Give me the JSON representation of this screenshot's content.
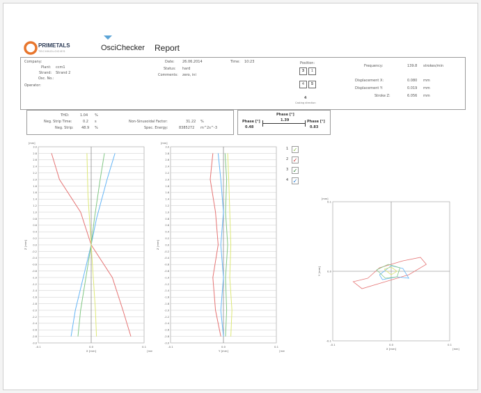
{
  "brand": {
    "name": "PRIMETALS",
    "tagline": "TECHNOLOGIES",
    "product": "OsciChecker",
    "report_title": "Report"
  },
  "info": {
    "company_label": "Company:",
    "plant_label": "Plant:",
    "plant_value": "ccm1",
    "strand_label": "Strand:",
    "strand_value": "Strand 2",
    "osc_no_label": "Osc. No.:",
    "operator_label": "Operator:",
    "date_label": "Date:",
    "date_value": "26.06.2014",
    "time_label": "Time:",
    "time_value": "10:23",
    "status_label": "Status:",
    "status_value": "hard",
    "comments_label": "Comments:",
    "comments_value": "zero, ini",
    "position_label": "Position:",
    "position_cells": [
      "3",
      "1",
      "4",
      "5"
    ],
    "position_marker": "4",
    "casting_direction": "Casting direction"
  },
  "measurements": {
    "frequency_label": "Frequency:",
    "frequency_value": "139.8",
    "frequency_unit": "strokes/min",
    "disp_x_label": "Displacement X:",
    "disp_x_value": "0.080",
    "disp_x_unit": "mm",
    "disp_y_label": "Displacement Y:",
    "disp_y_value": "0.019",
    "disp_y_unit": "mm",
    "stroke_z_label": "Stroke Z:",
    "stroke_z_value": "6.056",
    "stroke_z_unit": "mm"
  },
  "stats": {
    "tho_label": "THD:",
    "tho_value": "1.04",
    "tho_unit": "%",
    "neg_strip_time_label": "Neg. Strip Time:",
    "neg_strip_time_value": "0.2",
    "neg_strip_time_unit": "s",
    "neg_strip_label": "Neg. Strip:",
    "neg_strip_value": "48.9",
    "neg_strip_unit": "%",
    "nonsin_label": "Non-Sinusoidal Factor:",
    "nonsin_value": "31.22",
    "nonsin_unit": "%",
    "spec_energy_label": "Spec. Energy:",
    "spec_energy_value": "8385272",
    "spec_energy_unit": "m^2s^-3"
  },
  "phase": {
    "title": "Phase [°]",
    "left_label": "Phase [°]",
    "left_value": "0.48",
    "mid_value": "1.39",
    "right_label": "Phase [°]",
    "right_value": "0.83"
  },
  "legend": [
    {
      "num": "1",
      "mark": "✓",
      "color": "#8bc34a"
    },
    {
      "num": "2",
      "mark": "✓",
      "color": "#c62828"
    },
    {
      "num": "3",
      "mark": "✓",
      "color": "#2e7d32"
    },
    {
      "num": "4",
      "mark": "✓",
      "color": "#1976d2"
    }
  ],
  "chart_data": [
    {
      "type": "line",
      "ylabel": "Z [mm]",
      "xlabel": "X [mm]",
      "y_top_label": "[mm]",
      "x_unit": "[mm]",
      "xtick_labels": [
        "-0.1",
        "0.0",
        "0.1"
      ],
      "xlim": [
        -0.1,
        0.1
      ],
      "ylim": [
        -3.0,
        3.0
      ],
      "ytick_labels": [
        "3.0",
        "2.8",
        "2.6",
        "2.4",
        "2.2",
        "2.0",
        "1.8",
        "1.6",
        "1.4",
        "1.2",
        "1.0",
        "0.8",
        "0.6",
        "0.4",
        "0.2",
        "0.0",
        "-0.2",
        "-0.4",
        "-0.6",
        "-0.8",
        "-1.0",
        "-1.2",
        "-1.4",
        "-1.6",
        "-1.8",
        "-2.0",
        "-2.2",
        "-2.4",
        "-2.6",
        "-2.8",
        "-3.0"
      ],
      "series": [
        {
          "color": "#e57373",
          "points": [
            [
              -0.075,
              2.8
            ],
            [
              -0.06,
              2.0
            ],
            [
              -0.02,
              1.0
            ],
            [
              0.0,
              0.0
            ],
            [
              0.04,
              -1.0
            ],
            [
              0.06,
              -2.0
            ],
            [
              0.075,
              -2.8
            ]
          ]
        },
        {
          "color": "#64b5f6",
          "points": [
            [
              0.045,
              2.8
            ],
            [
              0.03,
              2.0
            ],
            [
              0.01,
              0.8
            ],
            [
              0.0,
              0.0
            ],
            [
              -0.015,
              -1.0
            ],
            [
              -0.03,
              -2.0
            ],
            [
              -0.038,
              -2.8
            ]
          ]
        },
        {
          "color": "#81c784",
          "points": [
            [
              0.025,
              2.8
            ],
            [
              0.017,
              2.0
            ],
            [
              0.006,
              0.8
            ],
            [
              0.0,
              0.0
            ],
            [
              -0.01,
              -1.0
            ],
            [
              -0.02,
              -2.0
            ],
            [
              -0.025,
              -2.8
            ]
          ]
        },
        {
          "color": "#dce775",
          "points": [
            [
              -0.008,
              2.8
            ],
            [
              -0.006,
              1.5
            ],
            [
              -0.002,
              0.5
            ],
            [
              0.0,
              0.0
            ],
            [
              0.004,
              -1.0
            ],
            [
              0.008,
              -2.0
            ],
            [
              0.01,
              -2.8
            ]
          ]
        }
      ]
    },
    {
      "type": "line",
      "ylabel": "Z [mm]",
      "xlabel": "Y [mm]",
      "y_top_label": "[mm]",
      "x_unit": "[mm]",
      "xtick_labels": [
        "-0.1",
        "0.0",
        "0.1"
      ],
      "xlim": [
        -0.1,
        0.1
      ],
      "ylim": [
        -3.0,
        3.0
      ],
      "ytick_labels": [
        "3.0",
        "2.8",
        "2.6",
        "2.4",
        "2.2",
        "2.0",
        "1.8",
        "1.6",
        "1.4",
        "1.2",
        "1.0",
        "0.8",
        "0.6",
        "0.4",
        "0.2",
        "0.0",
        "-0.2",
        "-0.4",
        "-0.6",
        "-0.8",
        "-1.0",
        "-1.2",
        "-1.4",
        "-1.6",
        "-1.8",
        "-2.0",
        "-2.2",
        "-2.4",
        "-2.6",
        "-2.8",
        "-3.0"
      ],
      "series": [
        {
          "color": "#e57373",
          "points": [
            [
              -0.02,
              2.8
            ],
            [
              -0.025,
              2.0
            ],
            [
              -0.015,
              1.0
            ],
            [
              -0.01,
              0.0
            ],
            [
              -0.02,
              -1.0
            ],
            [
              -0.015,
              -2.0
            ],
            [
              -0.005,
              -2.8
            ]
          ]
        },
        {
          "color": "#64b5f6",
          "points": [
            [
              -0.01,
              2.8
            ],
            [
              -0.005,
              2.0
            ],
            [
              0.0,
              1.0
            ],
            [
              -0.005,
              0.0
            ],
            [
              0.0,
              -1.0
            ],
            [
              -0.005,
              -2.0
            ],
            [
              0.0,
              -2.8
            ]
          ]
        },
        {
          "color": "#81c784",
          "points": [
            [
              0.003,
              2.8
            ],
            [
              0.006,
              2.0
            ],
            [
              0.004,
              1.0
            ],
            [
              0.008,
              0.0
            ],
            [
              0.004,
              -1.0
            ],
            [
              0.006,
              -2.0
            ],
            [
              0.004,
              -2.8
            ]
          ]
        },
        {
          "color": "#dce775",
          "points": [
            [
              0.008,
              2.8
            ],
            [
              0.01,
              2.0
            ],
            [
              0.012,
              1.0
            ],
            [
              0.014,
              0.0
            ],
            [
              0.012,
              -1.0
            ],
            [
              0.016,
              -2.0
            ],
            [
              0.014,
              -2.8
            ]
          ]
        }
      ]
    },
    {
      "type": "scatter",
      "ylabel": "Y [mm]",
      "xlabel": "X [mm]",
      "y_top_label": "[mm]",
      "x_unit": "[mm]",
      "xtick_labels": [
        "-0.1",
        "0.0",
        "0.1"
      ],
      "ytick_labels": [
        "0.1",
        "0.0",
        "-0.1"
      ],
      "xlim": [
        -0.1,
        0.1
      ],
      "ylim": [
        -0.1,
        0.1
      ],
      "series": [
        {
          "color": "#e57373",
          "points": [
            [
              -0.04,
              -0.01
            ],
            [
              -0.02,
              0.005
            ],
            [
              0.02,
              0.015
            ],
            [
              0.05,
              0.02
            ],
            [
              0.06,
              0.01
            ],
            [
              0.03,
              -0.005
            ],
            [
              -0.01,
              -0.015
            ],
            [
              -0.05,
              -0.025
            ],
            [
              -0.065,
              -0.015
            ],
            [
              -0.04,
              -0.01
            ]
          ]
        },
        {
          "color": "#64b5f6",
          "points": [
            [
              -0.02,
              -0.005
            ],
            [
              0.0,
              0.008
            ],
            [
              0.02,
              0.004
            ],
            [
              0.03,
              -0.01
            ],
            [
              0.01,
              -0.008
            ],
            [
              -0.015,
              -0.012
            ],
            [
              -0.02,
              -0.005
            ]
          ]
        },
        {
          "color": "#81c784",
          "points": [
            [
              -0.025,
              0.002
            ],
            [
              -0.005,
              0.01
            ],
            [
              0.015,
              0.005
            ],
            [
              0.01,
              -0.008
            ],
            [
              -0.01,
              -0.01
            ],
            [
              -0.025,
              0.002
            ]
          ]
        },
        {
          "color": "#dce775",
          "points": [
            [
              -0.012,
              0.003
            ],
            [
              0.0,
              0.006
            ],
            [
              0.01,
              0.0
            ],
            [
              0.0,
              -0.005
            ],
            [
              -0.012,
              0.003
            ]
          ]
        }
      ]
    }
  ]
}
